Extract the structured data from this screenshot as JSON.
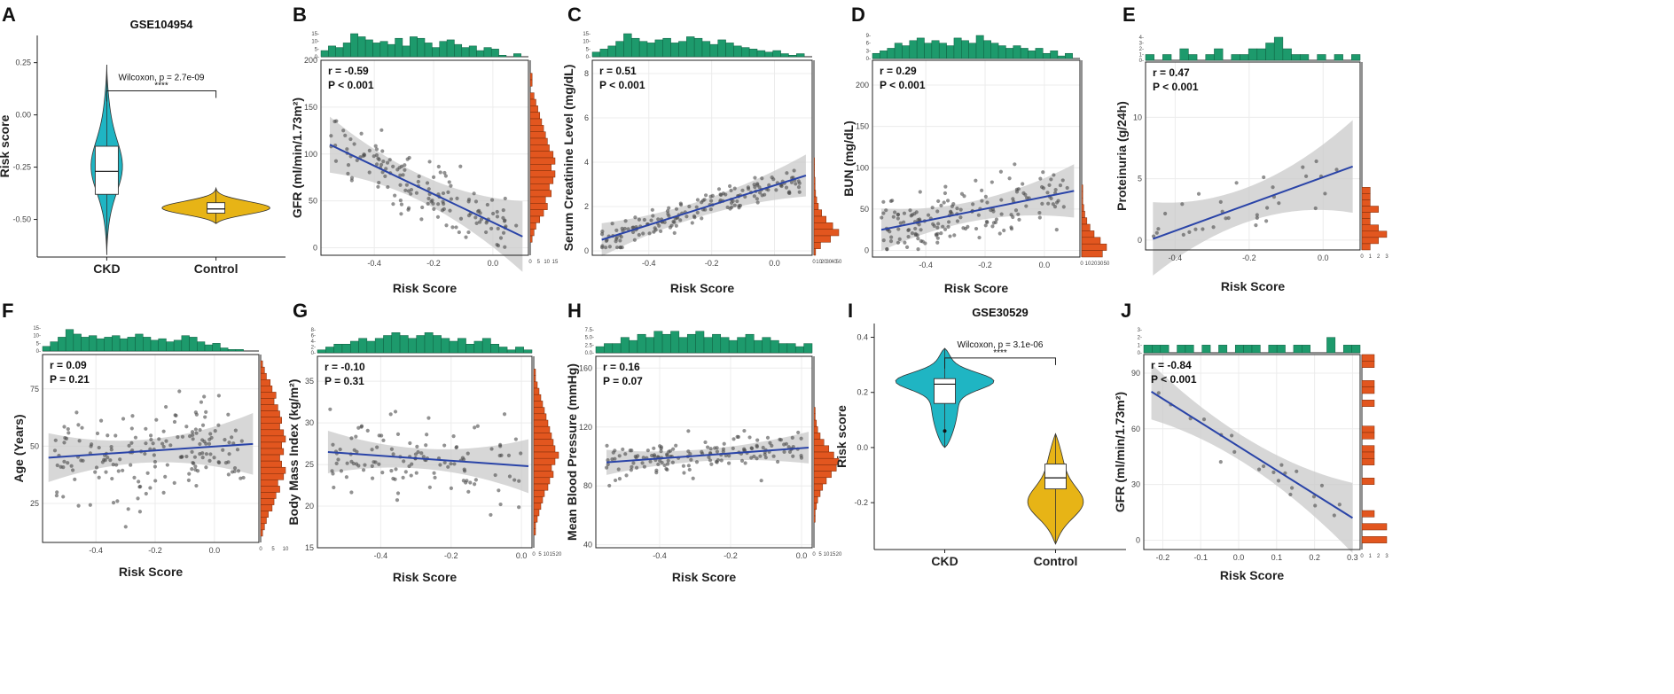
{
  "figure": {
    "width": 1888,
    "height": 783
  },
  "colors": {
    "teal": "#1fb5c3",
    "gold": "#e7b416",
    "green": "#1d9a6c",
    "orange": "#e2561f",
    "line": "#2a44a8",
    "point": "#4a4a4a",
    "ci": "#c9c9c9"
  },
  "chart_data": [
    {
      "id": "A",
      "type": "violin",
      "title": "GSE104954",
      "ylabel": "Risk score",
      "ylim": [
        -0.68,
        0.38
      ],
      "yticks": [
        0.25,
        0.0,
        -0.25,
        -0.5
      ],
      "ytick_labels": [
        "0.25",
        "0.00",
        "-0.25",
        "-0.50"
      ],
      "groups": [
        {
          "name": "CKD",
          "color": "teal",
          "min": -0.67,
          "q1": -0.38,
          "median": -0.27,
          "q3": -0.15,
          "max": 0.24
        },
        {
          "name": "Control",
          "color": "gold",
          "min": -0.52,
          "q1": -0.47,
          "median": -0.45,
          "q3": -0.42,
          "max": -0.35
        }
      ],
      "test_label": "Wilcoxon, p = 2.7e-09",
      "stars": "****"
    },
    {
      "id": "B",
      "type": "scatter",
      "xlabel": "Risk Score",
      "ylabel": "GFR (ml/min/1.73m²)",
      "xlim": [
        -0.58,
        0.12
      ],
      "ylim": [
        -8,
        200
      ],
      "xticks": [
        -0.4,
        -0.2,
        0.0
      ],
      "xtick_labels": [
        "-0.4",
        "-0.2",
        "0.0"
      ],
      "yticks": [
        0,
        50,
        100,
        150,
        200
      ],
      "ytick_labels": [
        "0",
        "50",
        "100",
        "150",
        "200"
      ],
      "r_label": "r = -0.59",
      "p_label": "P < 0.001",
      "fit": {
        "x0": -0.55,
        "y0": 110,
        "x1": 0.1,
        "y1": 12,
        "ci": 14
      },
      "n": 150,
      "seed": 11,
      "point_sd": 28,
      "xmin": -0.55,
      "xmax": 0.08,
      "top_hist_max": 15,
      "top_hist_ticks": [
        "15-",
        "10-",
        "5-",
        "0-"
      ],
      "top_hist": [
        4,
        7,
        6,
        9,
        15,
        13,
        11,
        9,
        10,
        8,
        12,
        7,
        13,
        12,
        9,
        6,
        10,
        11,
        8,
        6,
        7,
        4,
        6,
        5,
        1,
        0,
        2,
        0
      ],
      "right_hist_ticks": [
        "0",
        "5",
        "10",
        "15"
      ],
      "right_hist": [
        0,
        0,
        1,
        1,
        0,
        2,
        3,
        4,
        5,
        6,
        7,
        8,
        9,
        10,
        12,
        13,
        11,
        13,
        12,
        10,
        11,
        8,
        9,
        7,
        5,
        3,
        2,
        1,
        0,
        0
      ]
    },
    {
      "id": "C",
      "type": "scatter",
      "xlabel": "Risk Score",
      "ylabel": "Serum Creatinine Level (mg/dL)",
      "xlim": [
        -0.58,
        0.12
      ],
      "ylim": [
        -0.2,
        8.6
      ],
      "xticks": [
        -0.4,
        -0.2,
        0.0
      ],
      "xtick_labels": [
        "-0.4",
        "-0.2",
        "0.0"
      ],
      "yticks": [
        0,
        2,
        4,
        6,
        8
      ],
      "ytick_labels": [
        "0",
        "2",
        "4",
        "6",
        "8"
      ],
      "r_label": "r = 0.51",
      "p_label": "P < 0.001",
      "fit": {
        "x0": -0.55,
        "y0": 0.5,
        "x1": 0.1,
        "y1": 3.4,
        "ci": 0.35
      },
      "n": 170,
      "seed": 23,
      "point_sd": 0.55,
      "xmin": -0.55,
      "xmax": 0.08,
      "top_hist_max": 15,
      "top_hist_ticks": [
        "15-",
        "10-",
        "5-",
        "0-"
      ],
      "top_hist": [
        3,
        5,
        7,
        10,
        15,
        12,
        10,
        9,
        11,
        12,
        9,
        10,
        13,
        12,
        10,
        8,
        11,
        9,
        7,
        6,
        5,
        4,
        3,
        4,
        2,
        1,
        2,
        0
      ],
      "right_hist_ticks": [
        "0",
        "10",
        "20",
        "30",
        "40",
        "50"
      ],
      "right_hist": [
        0,
        0,
        0,
        0,
        0,
        0,
        0,
        0,
        0,
        0,
        0,
        0,
        0,
        0,
        0,
        1,
        1,
        1,
        2,
        2,
        3,
        5,
        8,
        14,
        22,
        34,
        45,
        30,
        12,
        3
      ]
    },
    {
      "id": "D",
      "type": "scatter",
      "xlabel": "Risk Score",
      "ylabel": "BUN (mg/dL)",
      "xlim": [
        -0.58,
        0.12
      ],
      "ylim": [
        -8,
        230
      ],
      "xticks": [
        -0.4,
        -0.2,
        0.0
      ],
      "xtick_labels": [
        "-0.4",
        "-0.2",
        "0.0"
      ],
      "yticks": [
        0,
        50,
        100,
        150,
        200
      ],
      "ytick_labels": [
        "0",
        "50",
        "100",
        "150",
        "200"
      ],
      "r_label": "r = 0.29",
      "p_label": "P < 0.001",
      "fit": {
        "x0": -0.55,
        "y0": 25,
        "x1": 0.1,
        "y1": 72,
        "ci": 12
      },
      "n": 170,
      "seed": 37,
      "point_sd": 28,
      "xmin": -0.55,
      "xmax": 0.08,
      "top_hist_max": 9,
      "top_hist_ticks": [
        "9-",
        "6-",
        "3-",
        "0-"
      ],
      "top_hist": [
        2,
        3,
        4,
        6,
        5,
        7,
        8,
        6,
        7,
        6,
        5,
        8,
        7,
        6,
        9,
        7,
        6,
        5,
        4,
        5,
        4,
        3,
        4,
        2,
        3,
        1,
        2,
        0
      ],
      "right_hist_ticks": [
        "0",
        "10",
        "20",
        "30",
        "50"
      ],
      "right_hist": [
        0,
        0,
        0,
        0,
        0,
        0,
        0,
        0,
        0,
        0,
        0,
        0,
        0,
        0,
        0,
        0,
        0,
        0,
        0,
        1,
        1,
        1,
        2,
        3,
        5,
        8,
        12,
        18,
        24,
        20
      ]
    },
    {
      "id": "E",
      "type": "scatter",
      "xlabel": "Risk Score",
      "ylabel": "Proteinuria (g/24h)",
      "xlim": [
        -0.48,
        0.1
      ],
      "ylim": [
        -0.8,
        14.5
      ],
      "xticks": [
        -0.4,
        -0.2,
        0.0
      ],
      "xtick_labels": [
        "-0.4",
        "-0.2",
        "0.0"
      ],
      "yticks": [
        0,
        5,
        10
      ],
      "ytick_labels": [
        "0",
        "5",
        "10"
      ],
      "r_label": "r = 0.47",
      "p_label": "P < 0.001",
      "fit": {
        "x0": -0.46,
        "y0": 0.1,
        "x1": 0.08,
        "y1": 6.0,
        "ci": 1.4
      },
      "n": 32,
      "seed": 51,
      "point_sd": 1.6,
      "xmin": -0.46,
      "xmax": 0.06,
      "top_hist_max": 4,
      "top_hist_ticks": [
        "4-",
        "3-",
        "2-",
        "1-",
        "0-"
      ],
      "top_hist": [
        1,
        0,
        1,
        0,
        2,
        1,
        0,
        1,
        2,
        0,
        1,
        1,
        2,
        2,
        3,
        4,
        2,
        1,
        1,
        0,
        1,
        0,
        1,
        0,
        1
      ],
      "right_hist_ticks": [
        "0",
        "1",
        "2",
        "3"
      ],
      "right_hist": [
        0,
        0,
        0,
        0,
        0,
        0,
        0,
        0,
        0,
        0,
        0,
        0,
        0,
        0,
        0,
        0,
        0,
        0,
        0,
        0,
        1,
        1,
        1,
        2,
        1,
        1,
        2,
        3,
        2,
        1
      ]
    },
    {
      "id": "F",
      "type": "scatter",
      "xlabel": "Risk Score",
      "ylabel": "Age (Years)",
      "xlim": [
        -0.58,
        0.15
      ],
      "ylim": [
        8,
        90
      ],
      "xticks": [
        -0.4,
        -0.2,
        0.0
      ],
      "xtick_labels": [
        "-0.4",
        "-0.2",
        "0.0"
      ],
      "yticks": [
        25,
        50,
        75
      ],
      "ytick_labels": [
        "25",
        "50",
        "75"
      ],
      "r_label": "r = 0.09",
      "p_label": "P = 0.21",
      "fit": {
        "x0": -0.56,
        "y0": 45,
        "x1": 0.13,
        "y1": 51,
        "ci": 5
      },
      "n": 180,
      "seed": 63,
      "point_sd": 17,
      "xmin": -0.55,
      "xmax": 0.1,
      "top_hist_max": 15,
      "top_hist_ticks": [
        "15-",
        "10-",
        "5-",
        "0-"
      ],
      "top_hist": [
        3,
        6,
        9,
        14,
        11,
        9,
        10,
        8,
        9,
        10,
        8,
        9,
        11,
        9,
        7,
        8,
        6,
        7,
        10,
        9,
        6,
        4,
        5,
        2,
        1,
        1,
        0,
        0
      ],
      "right_hist_ticks": [
        "0",
        "5",
        "10"
      ],
      "right_hist": [
        0,
        1,
        2,
        3,
        5,
        6,
        8,
        7,
        9,
        10,
        11,
        10,
        12,
        13,
        11,
        12,
        10,
        11,
        13,
        12,
        9,
        10,
        8,
        7,
        6,
        4,
        3,
        2,
        1,
        0
      ]
    },
    {
      "id": "G",
      "type": "scatter",
      "xlabel": "Risk Score",
      "ylabel": "Body Mass Index (kg/m²)",
      "xlim": [
        -0.58,
        0.03
      ],
      "ylim": [
        15,
        38
      ],
      "xticks": [
        -0.4,
        -0.2,
        0.0
      ],
      "xtick_labels": [
        "-0.4",
        "-0.2",
        "0.0"
      ],
      "yticks": [
        15,
        20,
        25,
        30,
        35
      ],
      "ytick_labels": [
        "15",
        "20",
        "25",
        "30",
        "35"
      ],
      "r_label": "r = -0.10",
      "p_label": "P = 0.31",
      "fit": {
        "x0": -0.55,
        "y0": 26.5,
        "x1": 0.02,
        "y1": 24.8,
        "ci": 1.2
      },
      "n": 120,
      "seed": 71,
      "point_sd": 3.6,
      "xmin": -0.55,
      "xmax": 0.0,
      "top_hist_max": 8,
      "top_hist_ticks": [
        "8-",
        "6-",
        "4-",
        "2-",
        "0-"
      ],
      "top_hist": [
        1,
        2,
        3,
        3,
        4,
        5,
        4,
        5,
        6,
        7,
        6,
        5,
        6,
        7,
        6,
        5,
        4,
        5,
        3,
        4,
        5,
        3,
        2,
        1,
        2,
        1
      ],
      "right_hist_ticks": [
        "0",
        "5",
        "10",
        "15",
        "20"
      ],
      "right_hist": [
        0,
        0,
        1,
        1,
        2,
        3,
        4,
        5,
        6,
        7,
        8,
        9,
        10,
        11,
        12,
        14,
        12,
        10,
        11,
        9,
        8,
        6,
        5,
        4,
        3,
        2,
        1,
        1,
        0,
        0
      ]
    },
    {
      "id": "H",
      "type": "scatter",
      "xlabel": "Risk Score",
      "ylabel": "Mean Blood Pressure (mmHg)",
      "xlim": [
        -0.58,
        0.03
      ],
      "ylim": [
        38,
        168
      ],
      "xticks": [
        -0.4,
        -0.2,
        0.0
      ],
      "xtick_labels": [
        "-0.4",
        "-0.2",
        "0.0"
      ],
      "yticks": [
        40,
        80,
        120,
        160
      ],
      "ytick_labels": [
        "40",
        "80",
        "120",
        "160"
      ],
      "r_label": "r = 0.16",
      "p_label": "P = 0.07",
      "fit": {
        "x0": -0.55,
        "y0": 96,
        "x1": 0.02,
        "y1": 106,
        "ci": 4
      },
      "n": 150,
      "seed": 89,
      "point_sd": 10,
      "xmin": -0.55,
      "xmax": 0.0,
      "top_hist_max": 7.5,
      "top_hist_ticks": [
        "7.5-",
        "5.0-",
        "2.5-",
        "0.0-"
      ],
      "top_hist": [
        2,
        3,
        3,
        5,
        4,
        6,
        5,
        7,
        6,
        7,
        5,
        6,
        7,
        5,
        6,
        5,
        4,
        5,
        6,
        4,
        5,
        4,
        3,
        3,
        2,
        3
      ],
      "right_hist_ticks": [
        "0",
        "5",
        "10",
        "15",
        "20"
      ],
      "right_hist": [
        0,
        0,
        0,
        0,
        0,
        0,
        0,
        0,
        1,
        1,
        2,
        3,
        5,
        8,
        12,
        16,
        20,
        18,
        14,
        10,
        7,
        5,
        3,
        2,
        1,
        1,
        0,
        0,
        0,
        0
      ]
    },
    {
      "id": "I",
      "type": "violin",
      "title": "GSE30529",
      "ylabel": "Risk score",
      "ylim": [
        -0.37,
        0.45
      ],
      "yticks": [
        0.4,
        0.2,
        0.0,
        -0.2
      ],
      "ytick_labels": [
        "0.4",
        "0.2",
        "0.0",
        "-0.2"
      ],
      "groups": [
        {
          "name": "CKD",
          "color": "teal",
          "min": 0.0,
          "q1": 0.16,
          "median": 0.23,
          "q3": 0.25,
          "max": 0.36
        },
        {
          "name": "Control",
          "color": "gold",
          "min": -0.35,
          "q1": -0.15,
          "median": -0.11,
          "q3": -0.06,
          "max": 0.05
        }
      ],
      "test_label": "Wilcoxon, p = 3.1e-06",
      "stars": "****"
    },
    {
      "id": "J",
      "type": "scatter",
      "xlabel": "Risk Score",
      "ylabel": "GFR (ml/min/1.73m²)",
      "xlim": [
        -0.25,
        0.32
      ],
      "ylim": [
        -5,
        100
      ],
      "xticks": [
        -0.2,
        -0.1,
        0.0,
        0.1,
        0.2,
        0.3
      ],
      "xtick_labels": [
        "-0.2",
        "-0.1",
        "0.0",
        "0.1",
        "0.2",
        "0.3"
      ],
      "yticks": [
        0,
        30,
        60,
        90
      ],
      "ytick_labels": [
        "0",
        "30",
        "60",
        "90"
      ],
      "r_label": "r = -0.84",
      "p_label": "P < 0.001",
      "fit": {
        "x0": -0.23,
        "y0": 80,
        "x1": 0.3,
        "y1": 12,
        "ci": 7
      },
      "n": 22,
      "seed": 97,
      "point_sd": 10,
      "xmin": -0.22,
      "xmax": 0.29,
      "top_hist_max": 3,
      "top_hist_ticks": [
        "3-",
        "2-",
        "1-",
        "0-"
      ],
      "top_hist": [
        1,
        1,
        1,
        0,
        1,
        1,
        0,
        1,
        0,
        1,
        0,
        1,
        1,
        1,
        0,
        1,
        1,
        0,
        1,
        1,
        0,
        0,
        2,
        0,
        1,
        1
      ],
      "right_hist_ticks": [
        "0",
        "1",
        "2",
        "3"
      ],
      "right_hist": [
        1,
        1,
        0,
        0,
        1,
        1,
        0,
        1,
        0,
        0,
        0,
        1,
        1,
        0,
        1,
        1,
        1,
        0,
        0,
        1,
        0,
        0,
        0,
        0,
        1,
        0,
        2,
        0,
        2,
        0
      ]
    }
  ]
}
